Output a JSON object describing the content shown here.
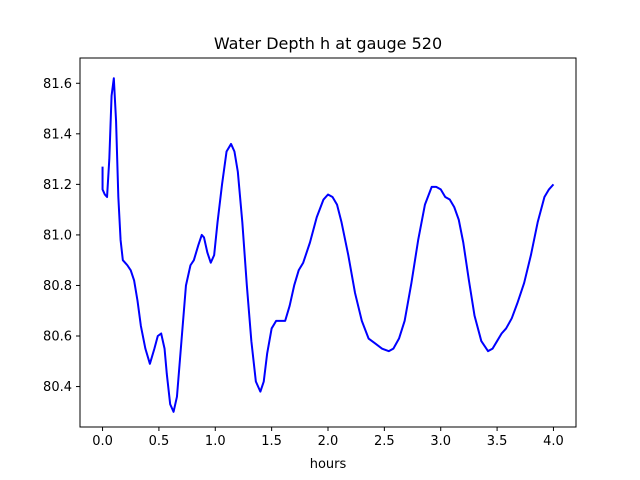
{
  "chart_data": {
    "type": "line",
    "title": "Water Depth h at gauge 520",
    "xlabel": "hours",
    "ylabel": "",
    "xlim": [
      -0.2,
      4.2
    ],
    "ylim": [
      80.24,
      81.7
    ],
    "xticks": [
      0.0,
      0.5,
      1.0,
      1.5,
      2.0,
      2.5,
      3.0,
      3.5,
      4.0
    ],
    "xtick_labels": [
      "0.0",
      "0.5",
      "1.0",
      "1.5",
      "2.0",
      "2.5",
      "3.0",
      "3.5",
      "4.0"
    ],
    "yticks": [
      80.4,
      80.6,
      80.8,
      81.0,
      81.2,
      81.4,
      81.6
    ],
    "ytick_labels": [
      "80.4",
      "80.6",
      "80.8",
      "81.0",
      "81.2",
      "81.4",
      "81.6"
    ],
    "grid": false,
    "series": [
      {
        "color": "#0000ff",
        "x": [
          0.0,
          0.0,
          0.02,
          0.04,
          0.06,
          0.08,
          0.1,
          0.12,
          0.14,
          0.16,
          0.18,
          0.2,
          0.22,
          0.25,
          0.28,
          0.31,
          0.34,
          0.38,
          0.42,
          0.46,
          0.49,
          0.52,
          0.55,
          0.57,
          0.6,
          0.63,
          0.66,
          0.7,
          0.74,
          0.78,
          0.81,
          0.85,
          0.88,
          0.9,
          0.93,
          0.96,
          0.99,
          1.02,
          1.06,
          1.1,
          1.14,
          1.17,
          1.2,
          1.24,
          1.28,
          1.32,
          1.36,
          1.4,
          1.43,
          1.46,
          1.5,
          1.54,
          1.58,
          1.62,
          1.66,
          1.7,
          1.74,
          1.78,
          1.84,
          1.9,
          1.96,
          2.0,
          2.04,
          2.08,
          2.12,
          2.18,
          2.24,
          2.3,
          2.36,
          2.42,
          2.48,
          2.54,
          2.58,
          2.63,
          2.68,
          2.74,
          2.8,
          2.86,
          2.92,
          2.96,
          3.0,
          3.04,
          3.08,
          3.12,
          3.16,
          3.2,
          3.25,
          3.3,
          3.36,
          3.42,
          3.46,
          3.5,
          3.54,
          3.58,
          3.63,
          3.68,
          3.74,
          3.8,
          3.86,
          3.92,
          3.96,
          4.0
        ],
        "y": [
          81.27,
          81.18,
          81.16,
          81.15,
          81.3,
          81.55,
          81.62,
          81.45,
          81.15,
          80.98,
          80.9,
          80.89,
          80.88,
          80.86,
          80.82,
          80.74,
          80.64,
          80.55,
          80.49,
          80.55,
          80.6,
          80.61,
          80.55,
          80.45,
          80.33,
          80.3,
          80.36,
          80.58,
          80.8,
          80.88,
          80.9,
          80.96,
          81.0,
          80.99,
          80.93,
          80.89,
          80.92,
          81.05,
          81.2,
          81.33,
          81.36,
          81.33,
          81.25,
          81.05,
          80.8,
          80.58,
          80.42,
          80.38,
          80.42,
          80.53,
          80.63,
          80.66,
          80.66,
          80.66,
          80.72,
          80.8,
          80.86,
          80.89,
          80.97,
          81.07,
          81.14,
          81.16,
          81.15,
          81.12,
          81.05,
          80.92,
          80.77,
          80.66,
          80.59,
          80.57,
          80.55,
          80.54,
          80.55,
          80.59,
          80.66,
          80.81,
          80.98,
          81.12,
          81.19,
          81.19,
          81.18,
          81.15,
          81.14,
          81.11,
          81.06,
          80.97,
          80.82,
          80.68,
          80.58,
          80.54,
          80.55,
          80.58,
          80.61,
          80.63,
          80.67,
          80.73,
          80.81,
          80.92,
          81.05,
          81.15,
          81.18,
          81.2
        ]
      }
    ]
  }
}
